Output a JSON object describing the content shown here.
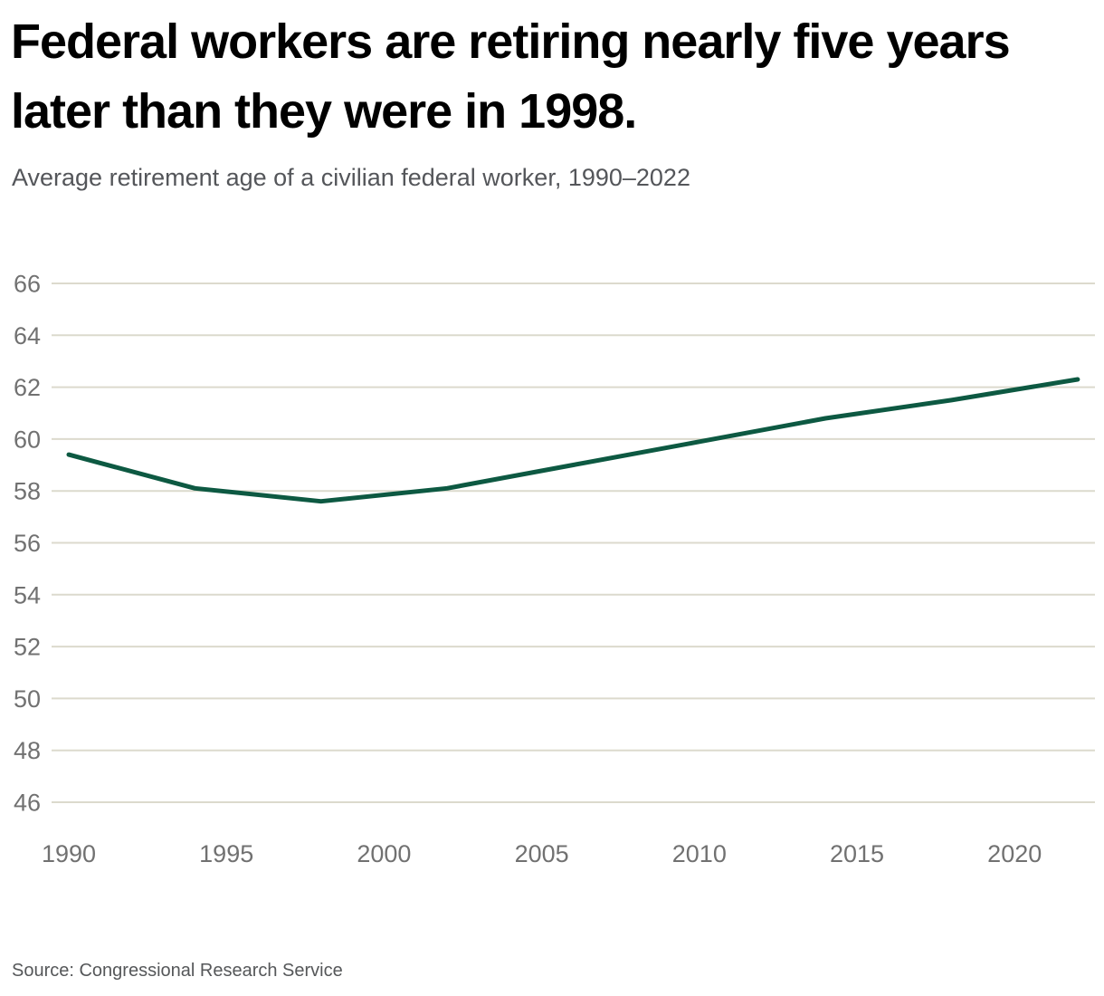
{
  "header": {
    "title": "Federal workers are retiring nearly five years later than they were in 1998.",
    "subtitle": "Average retirement age of a civilian federal worker, 1990–2022"
  },
  "footer": {
    "source": "Source: Congressional Research Service"
  },
  "colors": {
    "line": "#0d5942",
    "grid": "#dcdacd",
    "tick_label": "#717171",
    "title": "#000000",
    "subtitle": "#54565a",
    "source": "#555759",
    "background": "#ffffff"
  },
  "chart_data": {
    "type": "line",
    "title": "Federal workers are retiring nearly five years later than they were in 1998.",
    "subtitle": "Average retirement age of a civilian federal worker, 1990–2022",
    "source": "Source: Congressional Research Service",
    "series": [
      {
        "name": "Average retirement age of a civilian federal worker",
        "x": [
          1990,
          1994,
          1998,
          2002,
          2006,
          2010,
          2014,
          2018,
          2022
        ],
        "values": [
          59.4,
          58.1,
          57.6,
          58.1,
          59.0,
          59.9,
          60.8,
          61.5,
          62.3
        ]
      }
    ],
    "xlabel": "",
    "ylabel": "",
    "x_ticks": [
      1990,
      1995,
      2000,
      2005,
      2010,
      2015,
      2020
    ],
    "y_ticks": [
      46,
      48,
      50,
      52,
      54,
      56,
      58,
      60,
      62,
      64,
      66
    ],
    "xlim": [
      1990,
      2022
    ],
    "ylim": [
      46,
      66
    ],
    "grid": "horizontal",
    "legend_position": "none"
  }
}
